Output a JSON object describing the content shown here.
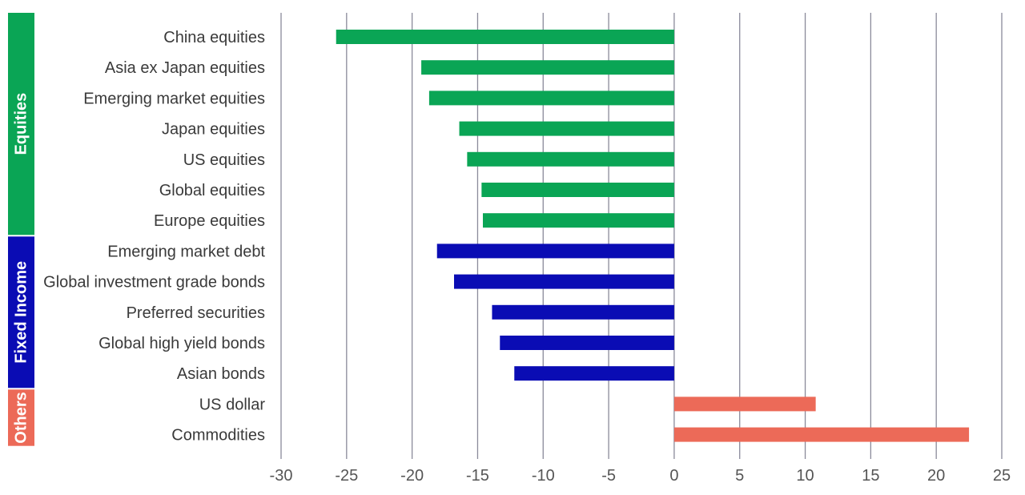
{
  "chart_data": {
    "type": "bar",
    "orientation": "horizontal",
    "categories": [
      "China equities",
      "Asia ex Japan equities",
      "Emerging market equities",
      "Japan equities",
      "US equities",
      "Global equities",
      "Europe equities",
      "Emerging market debt",
      "Global investment grade bonds",
      "Preferred securities",
      "Global high yield bonds",
      "Asian bonds",
      "US dollar",
      "Commodities"
    ],
    "values": [
      -25.8,
      -19.3,
      -18.7,
      -16.4,
      -15.8,
      -14.7,
      -14.6,
      -18.1,
      -16.8,
      -13.9,
      -13.3,
      -12.2,
      10.8,
      22.5
    ],
    "groups": [
      {
        "label": "Equities",
        "count": 7,
        "color": "#0aa555"
      },
      {
        "label": "Fixed Income",
        "count": 5,
        "color": "#0a0cb4"
      },
      {
        "label": "Others",
        "count": 2,
        "color": "#ec6a58"
      }
    ],
    "xlim": [
      -30,
      25
    ],
    "xticks": [
      "-30",
      "-25",
      "-20",
      "-15",
      "-10",
      "-5",
      "0",
      "5",
      "10",
      "15",
      "20",
      "25"
    ],
    "grid": "vertical",
    "gridColor": "#8a8a9a",
    "title": "",
    "xlabel": "",
    "ylabel": ""
  }
}
